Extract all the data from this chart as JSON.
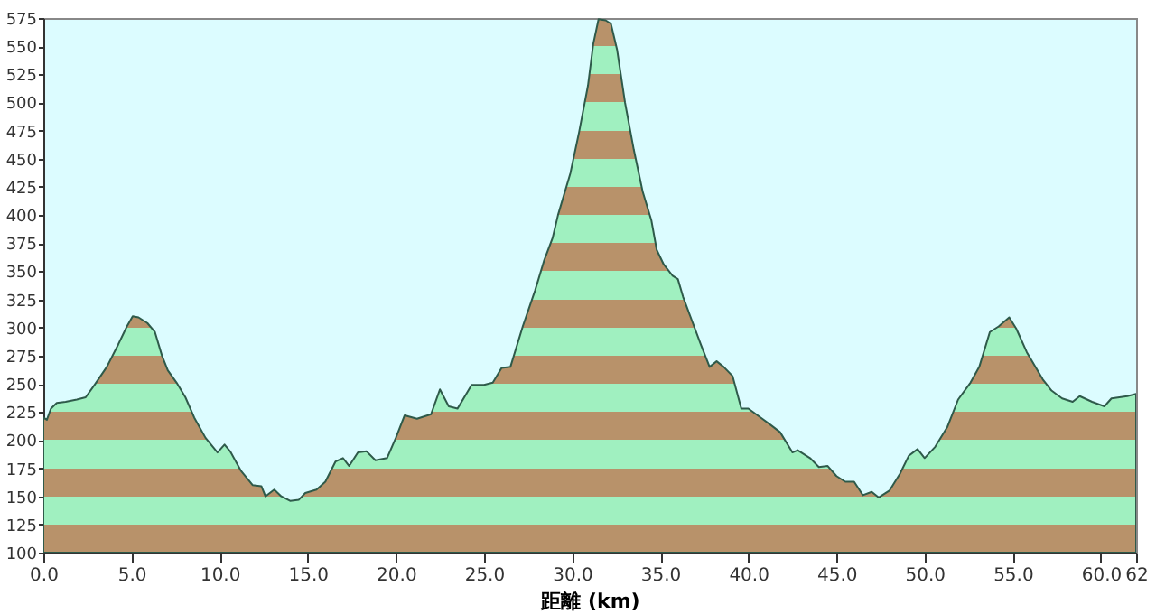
{
  "chart_data": {
    "type": "area",
    "xlabel": "距離 (km)",
    "x": [
      0,
      0.2,
      0.43,
      0.76,
      1.26,
      1.9,
      2.4,
      2.9,
      3.6,
      4.25,
      4.74,
      5.07,
      5.4,
      5.9,
      6.33,
      6.73,
      7.06,
      7.56,
      8.06,
      8.56,
      9.2,
      9.88,
      10.28,
      10.6,
      11.2,
      11.87,
      12.37,
      12.6,
      13.1,
      13.5,
      14.0,
      14.5,
      14.86,
      15.5,
      16.0,
      16.58,
      17.0,
      17.35,
      17.85,
      18.34,
      18.84,
      19.5,
      20.0,
      20.5,
      21.2,
      22.0,
      22.5,
      23.0,
      23.5,
      24.3,
      25.0,
      25.5,
      26.0,
      26.5,
      27.2,
      27.9,
      28.4,
      28.9,
      29.2,
      29.9,
      30.4,
      30.9,
      31.2,
      31.5,
      31.9,
      32.2,
      32.55,
      33.0,
      33.5,
      34.0,
      34.5,
      34.8,
      35.2,
      35.7,
      36.0,
      36.3,
      36.8,
      37.3,
      37.8,
      38.2,
      38.6,
      39.1,
      39.6,
      40.0,
      40.7,
      41.3,
      41.8,
      42.5,
      42.8,
      43.5,
      44.0,
      44.5,
      45.0,
      45.5,
      46.0,
      46.5,
      47.0,
      47.4,
      48.0,
      48.6,
      49.1,
      49.6,
      50.0,
      50.6,
      51.3,
      51.9,
      52.6,
      53.1,
      53.7,
      54.2,
      54.8,
      55.2,
      55.8,
      56.7,
      57.2,
      57.8,
      58.4,
      58.8,
      59.5,
      60.2,
      60.6,
      61.5,
      62.0
    ],
    "series": [
      {
        "color": "#2e5a4a",
        "values": [
          220,
          218,
          228,
          233,
          234,
          236,
          238,
          249,
          265,
          285,
          301,
          310,
          309,
          304,
          296,
          275,
          262,
          251,
          238,
          220,
          202,
          189,
          196,
          190,
          173,
          160,
          159,
          150,
          156,
          150,
          146,
          147,
          153,
          156,
          163,
          181,
          184,
          177,
          189,
          190,
          182,
          184,
          202,
          222,
          219,
          223,
          245,
          230,
          228,
          249,
          249,
          251,
          264,
          265,
          301,
          333,
          359,
          380,
          400,
          437,
          474,
          515,
          552,
          574,
          573,
          570,
          547,
          500,
          458,
          421,
          395,
          369,
          356,
          346,
          343,
          327,
          306,
          285,
          265,
          270,
          265,
          257,
          228,
          228,
          220,
          213,
          207,
          189,
          191,
          184,
          176,
          177,
          168,
          163,
          163,
          151,
          154,
          149,
          155,
          170,
          186,
          192,
          184,
          194,
          212,
          236,
          251,
          265,
          296,
          301,
          309,
          299,
          278,
          254,
          244,
          237,
          234,
          239,
          234,
          230,
          237,
          239,
          241
        ]
      }
    ],
    "xlim": [
      0,
      62
    ],
    "xticks": [
      {
        "value": 0,
        "label": "0.0"
      },
      {
        "value": 5,
        "label": "5.0"
      },
      {
        "value": 10,
        "label": "10.0"
      },
      {
        "value": 15,
        "label": "15.0"
      },
      {
        "value": 20,
        "label": "20.0"
      },
      {
        "value": 25,
        "label": "25.0"
      },
      {
        "value": 30,
        "label": "30.0"
      },
      {
        "value": 35,
        "label": "35.0"
      },
      {
        "value": 40,
        "label": "40.0"
      },
      {
        "value": 45,
        "label": "45.0"
      },
      {
        "value": 50,
        "label": "50.0"
      },
      {
        "value": 55,
        "label": "55.0"
      },
      {
        "value": 60,
        "label": "60.0"
      },
      {
        "value": 62,
        "label": "62"
      }
    ],
    "ylim": [
      100,
      575
    ],
    "yticks": [
      100,
      125,
      150,
      175,
      200,
      225,
      250,
      275,
      300,
      325,
      350,
      375,
      400,
      425,
      450,
      475,
      500,
      525,
      550,
      575
    ],
    "grid": false
  }
}
